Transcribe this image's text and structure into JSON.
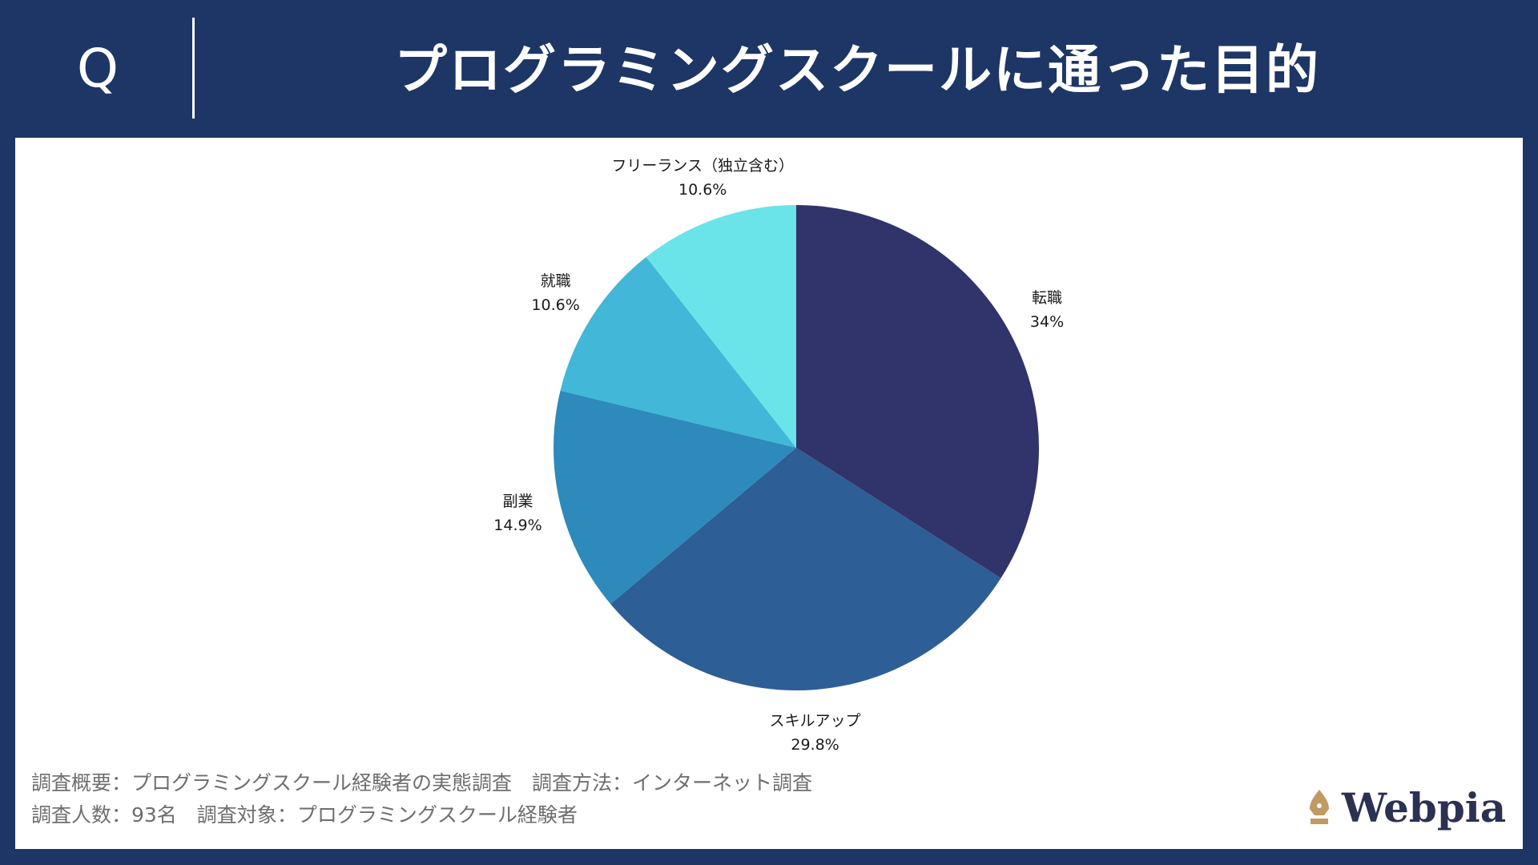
{
  "header": {
    "q_mark": "Q",
    "title": "プログラミングスクールに通った目的"
  },
  "chart_data": {
    "type": "pie",
    "title": "プログラミングスクールに通った目的",
    "slices": [
      {
        "label": "転職",
        "value_label": "34%",
        "value": 34.0,
        "color": "#30346b"
      },
      {
        "label": "スキルアップ",
        "value_label": "29.8%",
        "value": 29.8,
        "color": "#2d5e96"
      },
      {
        "label": "副業",
        "value_label": "14.9%",
        "value": 14.9,
        "color": "#2d8aba"
      },
      {
        "label": "就職",
        "value_label": "10.6%",
        "value": 10.6,
        "color": "#42b7d7"
      },
      {
        "label": "フリーランス（独立含む）",
        "value_label": "10.6%",
        "value": 10.6,
        "color": "#6ae4e8"
      }
    ],
    "start_angle": "12 o'clock",
    "direction": "clockwise"
  },
  "footer": {
    "line1": "調査概要：プログラミングスクール経験者の実態調査　調査方法：インターネット調査",
    "line2": "調査人数：93名　調査対象：プログラミングスクール経験者"
  },
  "logo": {
    "text": "Webpia",
    "color": "#c09a62",
    "icon": "pen-nib-icon"
  }
}
